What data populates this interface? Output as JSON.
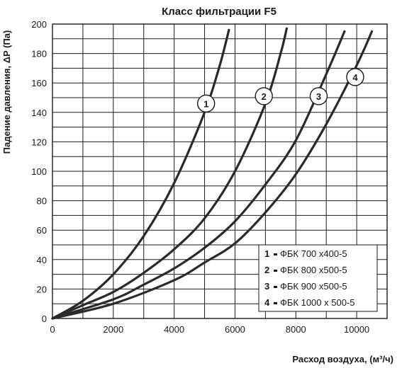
{
  "chart_data": {
    "type": "line",
    "title": "Класс фильтрации F5",
    "xlabel": "Расход воздуха, (м³/ч)",
    "ylabel": "Падение давления, ΔP (Па)",
    "xlim": [
      0,
      11000
    ],
    "ylim": [
      0,
      200
    ],
    "x_ticks": [
      "0",
      "2000",
      "4000",
      "6000",
      "8000",
      "10000"
    ],
    "y_ticks": [
      "0",
      "20",
      "40",
      "60",
      "80",
      "100",
      "120",
      "140",
      "160",
      "180",
      "200"
    ],
    "grid": true,
    "series": [
      {
        "name": "1",
        "legend_number": "1",
        "legend_label": "ФБК 700 х400-5",
        "marker": "1",
        "x": [
          0,
          1000,
          2000,
          3000,
          4000,
          5000,
          5500,
          5800
        ],
        "y": [
          0,
          12,
          30,
          56,
          92,
          140,
          172,
          196
        ]
      },
      {
        "name": "2",
        "legend_number": "2",
        "legend_label": "ФБК 800 х500-5",
        "marker": "2",
        "x": [
          0,
          1000,
          2000,
          3000,
          4000,
          5000,
          6000,
          7000,
          7500,
          7700
        ],
        "y": [
          0,
          9,
          18,
          31,
          47,
          68,
          100,
          146,
          180,
          197
        ]
      },
      {
        "name": "3",
        "legend_number": "3",
        "legend_label": "ФБК 900 х500-5",
        "marker": "3",
        "x": [
          0,
          2000,
          3000,
          4000,
          5000,
          6000,
          7000,
          8000,
          9000,
          9600
        ],
        "y": [
          0,
          13,
          23,
          34,
          48,
          66,
          91,
          121,
          166,
          195
        ]
      },
      {
        "name": "4",
        "legend_number": "4",
        "legend_label": "ФБК 1000 х 500-5",
        "marker": "4",
        "x": [
          0,
          2000,
          4000,
          5000,
          6000,
          7000,
          8000,
          9000,
          10000,
          10500
        ],
        "y": [
          0,
          10,
          26,
          38,
          51,
          72,
          98,
          132,
          172,
          195
        ]
      }
    ],
    "markers": [
      {
        "label": "1",
        "x": 5050,
        "y": 146
      },
      {
        "label": "2",
        "x": 6950,
        "y": 151
      },
      {
        "label": "3",
        "x": 8750,
        "y": 151
      },
      {
        "label": "4",
        "x": 9950,
        "y": 164
      }
    ],
    "legend_position": "bottom-right"
  }
}
